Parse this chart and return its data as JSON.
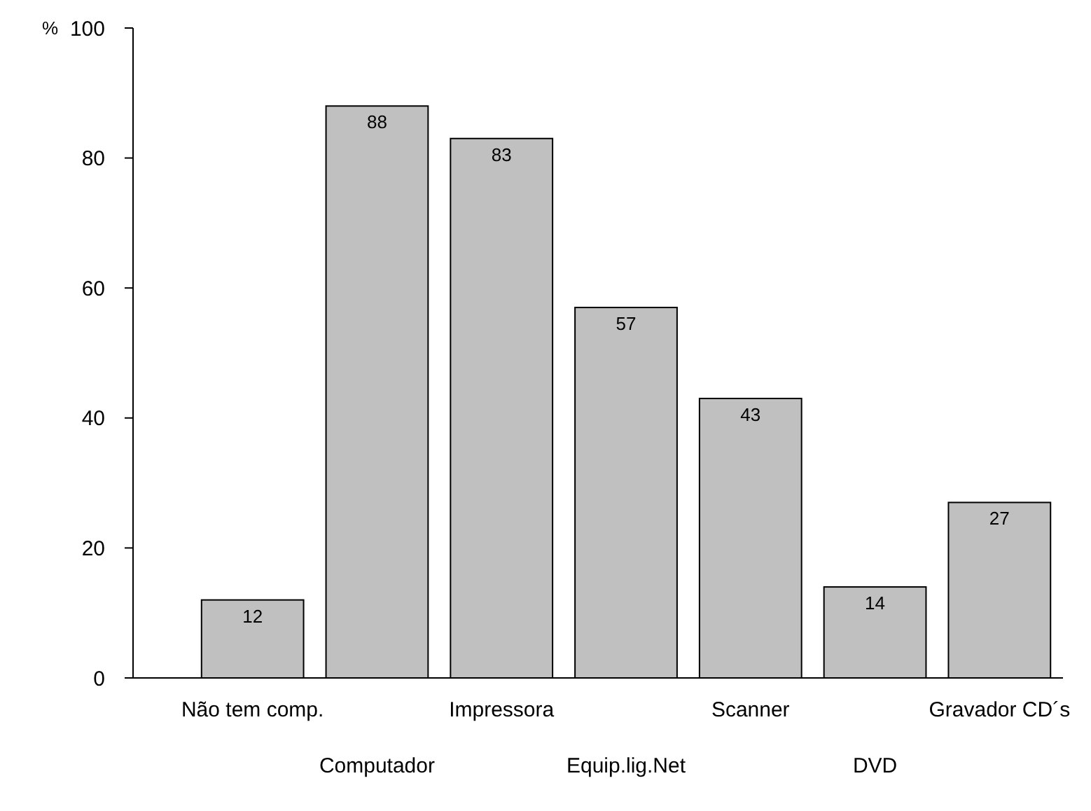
{
  "chart_data": {
    "type": "bar",
    "ylabel": "%",
    "categories": [
      "Não tem comp.",
      "Computador",
      "Impressora",
      "Equip.lig.Net",
      "Scanner",
      "DVD",
      "Gravador CD´s"
    ],
    "values": [
      12,
      88,
      83,
      57,
      43,
      14,
      27
    ],
    "color": "#c0c0c0",
    "ylim": [
      0,
      100
    ],
    "yticks": [
      0,
      20,
      40,
      60,
      80,
      100
    ],
    "grid": false,
    "data_labels": true
  }
}
